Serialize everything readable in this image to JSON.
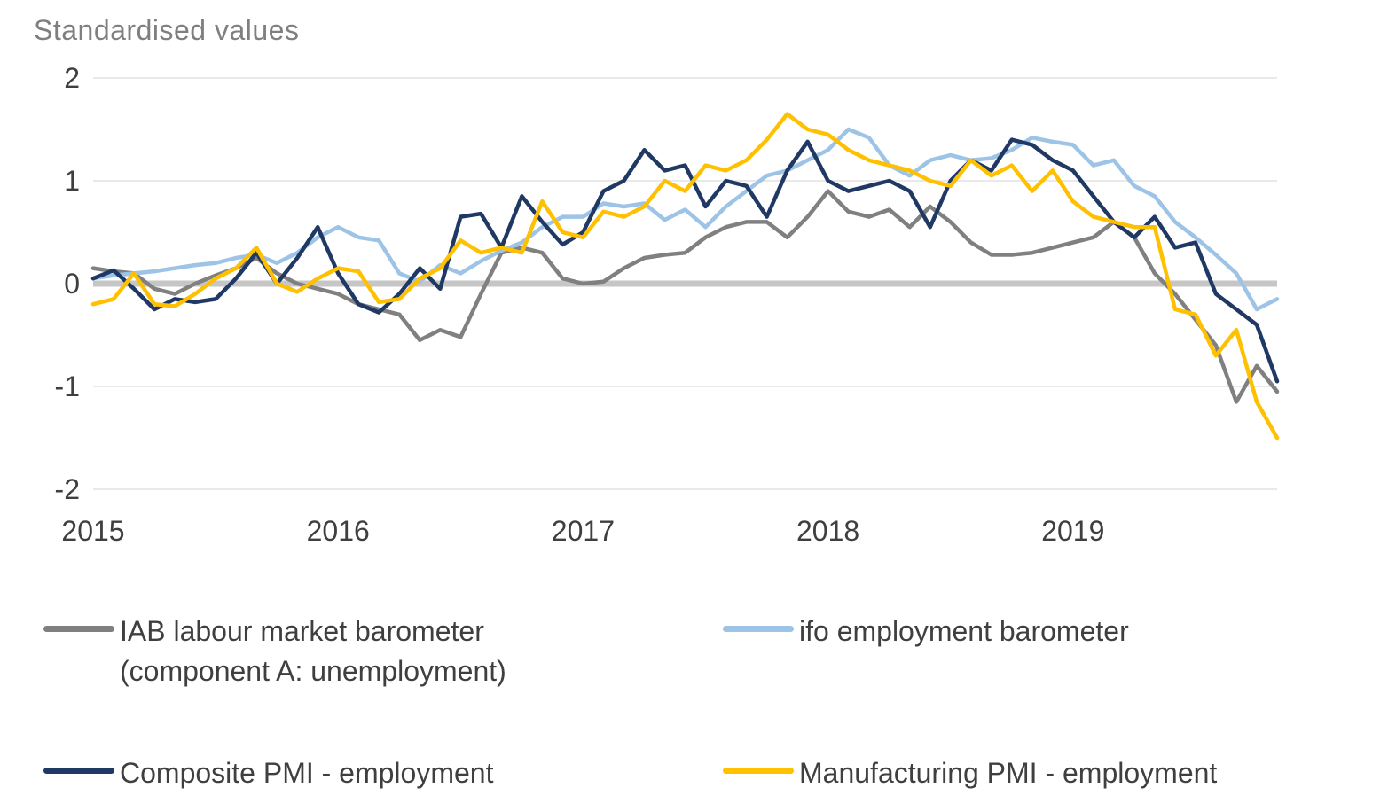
{
  "chart_data": {
    "type": "line",
    "title": "Standardised values",
    "y_axis": {
      "ticks": [
        2,
        1,
        0,
        -1,
        -2
      ],
      "lim": [
        -2,
        2
      ]
    },
    "x_axis": {
      "tick_labels": [
        "2015",
        "2016",
        "2017",
        "2018",
        "2019"
      ],
      "tick_indices": [
        0,
        12,
        24,
        36,
        48
      ],
      "frequency": "monthly",
      "start": "2015-01",
      "end": "2019-11"
    },
    "grid": "horizontal",
    "zero_line_emphasized": true,
    "legend_position": "bottom",
    "colors": {
      "grid": "#e2e2e2",
      "zero_line": "#c6c6c6",
      "axis_text": "#3f3f3f",
      "title_text": "#7f7f7f"
    },
    "series": [
      {
        "id": "iab",
        "name": "IAB labour market barometer (component A: unemployment)",
        "color": "#808080",
        "values": [
          0.15,
          0.12,
          0.1,
          -0.05,
          -0.1,
          0.0,
          0.08,
          0.15,
          0.25,
          0.1,
          0.0,
          -0.05,
          -0.1,
          -0.2,
          -0.25,
          -0.3,
          -0.55,
          -0.45,
          -0.52,
          -0.1,
          0.3,
          0.35,
          0.3,
          0.05,
          0.0,
          0.02,
          0.15,
          0.25,
          0.28,
          0.3,
          0.45,
          0.55,
          0.6,
          0.6,
          0.45,
          0.65,
          0.9,
          0.7,
          0.65,
          0.72,
          0.55,
          0.75,
          0.6,
          0.4,
          0.28,
          0.28,
          0.3,
          0.35,
          0.4,
          0.45,
          0.6,
          0.45,
          0.1,
          -0.1,
          -0.35,
          -0.6,
          -1.15,
          -0.8,
          -1.05
        ]
      },
      {
        "id": "ifo",
        "name": "ifo employment barometer",
        "color": "#9dc3e6",
        "values": [
          0.05,
          0.08,
          0.1,
          0.12,
          0.15,
          0.18,
          0.2,
          0.25,
          0.28,
          0.2,
          0.3,
          0.45,
          0.55,
          0.45,
          0.42,
          0.1,
          0.02,
          0.18,
          0.1,
          0.22,
          0.32,
          0.4,
          0.55,
          0.65,
          0.65,
          0.78,
          0.75,
          0.78,
          0.62,
          0.72,
          0.55,
          0.75,
          0.9,
          1.05,
          1.1,
          1.2,
          1.3,
          1.5,
          1.42,
          1.15,
          1.05,
          1.2,
          1.25,
          1.2,
          1.22,
          1.3,
          1.42,
          1.38,
          1.35,
          1.15,
          1.2,
          0.95,
          0.85,
          0.6,
          0.45,
          0.28,
          0.1,
          -0.25,
          -0.15
        ]
      },
      {
        "id": "composite-pmi",
        "name": "Composite PMI - employment",
        "color": "#1f3864",
        "values": [
          0.05,
          0.13,
          -0.05,
          -0.25,
          -0.15,
          -0.18,
          -0.15,
          0.05,
          0.3,
          0.0,
          0.25,
          0.55,
          0.1,
          -0.2,
          -0.28,
          -0.1,
          0.15,
          -0.05,
          0.65,
          0.68,
          0.35,
          0.85,
          0.6,
          0.38,
          0.5,
          0.9,
          1.0,
          1.3,
          1.1,
          1.15,
          0.75,
          1.0,
          0.95,
          0.65,
          1.1,
          1.38,
          1.0,
          0.9,
          0.95,
          1.0,
          0.9,
          0.55,
          1.0,
          1.2,
          1.1,
          1.4,
          1.35,
          1.2,
          1.1,
          0.85,
          0.6,
          0.45,
          0.65,
          0.35,
          0.4,
          -0.1,
          -0.25,
          -0.4,
          -0.95
        ]
      },
      {
        "id": "manufacturing-pmi",
        "name": "Manufacturing PMI - employment",
        "color": "#ffc000",
        "values": [
          -0.2,
          -0.15,
          0.1,
          -0.2,
          -0.22,
          -0.1,
          0.05,
          0.15,
          0.35,
          0.0,
          -0.08,
          0.05,
          0.15,
          0.12,
          -0.18,
          -0.15,
          0.05,
          0.15,
          0.42,
          0.3,
          0.35,
          0.3,
          0.8,
          0.5,
          0.45,
          0.7,
          0.65,
          0.75,
          1.0,
          0.9,
          1.15,
          1.1,
          1.2,
          1.4,
          1.65,
          1.5,
          1.45,
          1.3,
          1.2,
          1.15,
          1.1,
          1.0,
          0.95,
          1.2,
          1.05,
          1.15,
          0.9,
          1.1,
          0.8,
          0.65,
          0.6,
          0.55,
          0.55,
          -0.25,
          -0.3,
          -0.7,
          -0.45,
          -1.15,
          -1.5
        ]
      }
    ]
  }
}
